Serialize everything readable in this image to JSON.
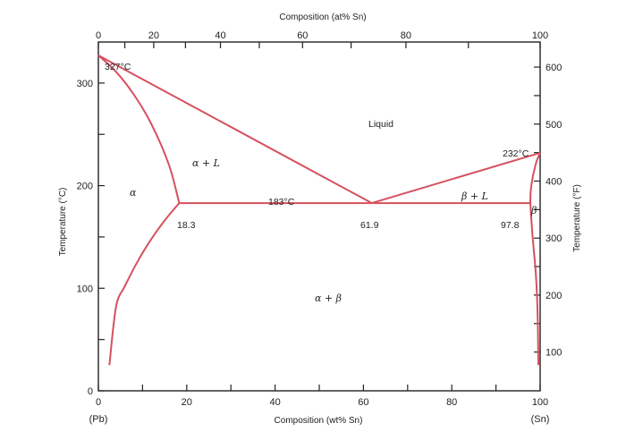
{
  "chart_data": {
    "type": "line",
    "title": "",
    "xlabel_bottom": "Composition (wt% Sn)",
    "xlabel_top": "Composition (at% Sn)",
    "ylabel_left": "Temperature (°C)",
    "ylabel_right": "Temperature (°F)",
    "end_labels": {
      "left": "(Pb)",
      "right": "(Sn)"
    },
    "xlim": [
      0,
      100
    ],
    "ylim_c": [
      0,
      340
    ],
    "bottom_ticks": [
      0,
      20,
      40,
      60,
      80,
      100
    ],
    "top_ticks": [
      0,
      20,
      40,
      60,
      80,
      100
    ],
    "left_ticks": [
      0,
      100,
      200,
      300
    ],
    "right_ticks": [
      100,
      200,
      300,
      400,
      500,
      600
    ],
    "annotations": {
      "pb_melt": "327°C",
      "sn_melt": "232°C",
      "eutectic_temp": "183°C",
      "alpha_limit": "18.3",
      "eutectic_comp": "61.9",
      "beta_limit": "97.8"
    },
    "phase_labels": {
      "liquid": "Liquid",
      "alpha": "α",
      "alpha_l": "α + L",
      "beta": "β",
      "beta_l": "β + L",
      "alpha_beta": "α + β"
    },
    "series": [
      {
        "key": "liquidus_left",
        "x": [
          0,
          61.9
        ],
        "y": [
          327,
          183
        ]
      },
      {
        "key": "liquidus_right",
        "x": [
          61.9,
          100
        ],
        "y": [
          183,
          232
        ]
      },
      {
        "key": "eutectic_line",
        "x": [
          18.3,
          97.8
        ],
        "y": [
          183,
          183
        ]
      },
      {
        "key": "solidus_alpha",
        "x": [
          0,
          4,
          8,
          12,
          16,
          18.3
        ],
        "y": [
          327,
          311,
          289,
          260,
          220,
          183
        ]
      },
      {
        "key": "solvus_alpha",
        "x": [
          18.3,
          15,
          12,
          9,
          6,
          4,
          2.5
        ],
        "y": [
          183,
          166,
          148,
          127,
          102,
          82,
          25
        ]
      },
      {
        "key": "beta_boundary",
        "x": [
          100,
          99,
          98,
          97.8,
          98.3,
          99,
          99.4,
          99.6
        ],
        "y": [
          232,
          221,
          200,
          183,
          150,
          115,
          80,
          25
        ]
      }
    ]
  }
}
